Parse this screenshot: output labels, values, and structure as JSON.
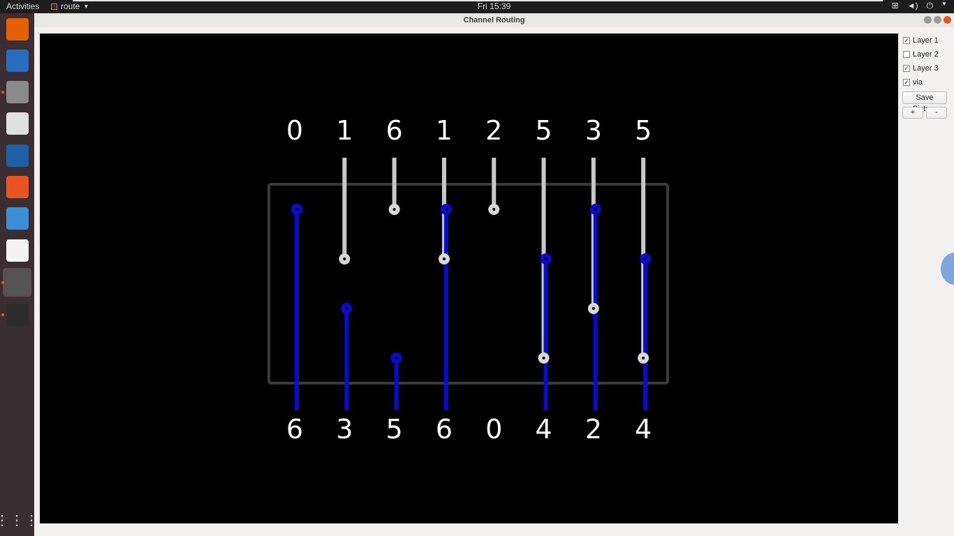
{
  "topbar": {
    "activities": "Activities",
    "app_name": "route",
    "clock": "Fri 15:39",
    "tray_icons": [
      "network-icon",
      "volume-icon",
      "power-icon",
      "chevron-down-icon"
    ]
  },
  "dock": {
    "items": [
      {
        "name": "firefox",
        "color": "#e66000",
        "running": false
      },
      {
        "name": "thunderbird",
        "color": "#2a6dc0",
        "running": false
      },
      {
        "name": "files",
        "color": "#8a8a8a",
        "running": true
      },
      {
        "name": "rhythmbox",
        "color": "#e0e0e0",
        "running": false
      },
      {
        "name": "writer",
        "color": "#1f5fa3",
        "running": false
      },
      {
        "name": "software",
        "color": "#e95420",
        "running": false
      },
      {
        "name": "help",
        "color": "#3c8ed6",
        "running": false
      },
      {
        "name": "amazon",
        "color": "#f2f2f2",
        "running": false
      },
      {
        "name": "route-app",
        "color": "#555",
        "running": true,
        "active": true
      },
      {
        "name": "terminal",
        "color": "#2c2c2c",
        "running": true
      }
    ],
    "show_apps": "show-apps-icon"
  },
  "window": {
    "title": "Channel Routing",
    "panel": {
      "checkboxes": [
        {
          "label": "Layer 1",
          "checked": true
        },
        {
          "label": "Layer 2",
          "checked": false
        },
        {
          "label": "Layer 3",
          "checked": true
        },
        {
          "label": "via",
          "checked": true
        }
      ],
      "save_label": "Save Picture",
      "zoom_in": "+",
      "zoom_out": "-"
    }
  },
  "routing": {
    "top_pins": [
      "0",
      "1",
      "6",
      "1",
      "2",
      "5",
      "3",
      "5"
    ],
    "bottom_pins": [
      "6",
      "3",
      "5",
      "6",
      "0",
      "4",
      "2",
      "4"
    ],
    "colors": {
      "layer1": "#c8c8c8",
      "layer3": "#0a0ad0",
      "channel": "#3a3a3a",
      "text": "#ffffff"
    },
    "tracks_count": 4,
    "top_segments": [
      {
        "column": 1,
        "to_track": 2
      },
      {
        "column": 2,
        "to_track": 1
      },
      {
        "column": 3,
        "to_track": 2
      },
      {
        "column": 4,
        "to_track": 1
      },
      {
        "column": 5,
        "to_track": 4
      },
      {
        "column": 6,
        "to_track": 3
      },
      {
        "column": 7,
        "to_track": 4
      }
    ],
    "bottom_segments": [
      {
        "column": 0,
        "from_track": 1
      },
      {
        "column": 1,
        "from_track": 3
      },
      {
        "column": 2,
        "from_track": 4
      },
      {
        "column": 3,
        "from_track": 1
      },
      {
        "column": 5,
        "from_track": 2
      },
      {
        "column": 6,
        "from_track": 1
      },
      {
        "column": 7,
        "from_track": 2
      }
    ],
    "gray_vias": [
      {
        "column": 1,
        "track": 2
      },
      {
        "column": 2,
        "track": 1
      },
      {
        "column": 3,
        "track": 2
      },
      {
        "column": 4,
        "track": 1
      },
      {
        "column": 5,
        "track": 4
      },
      {
        "column": 6,
        "track": 3
      },
      {
        "column": 7,
        "track": 4
      }
    ],
    "blue_vias": [
      {
        "column": 0,
        "track": 1
      },
      {
        "column": 1,
        "track": 3
      },
      {
        "column": 2,
        "track": 4
      },
      {
        "column": 3,
        "track": 1
      },
      {
        "column": 5,
        "track": 2
      },
      {
        "column": 6,
        "track": 1
      },
      {
        "column": 7,
        "track": 2
      }
    ]
  }
}
